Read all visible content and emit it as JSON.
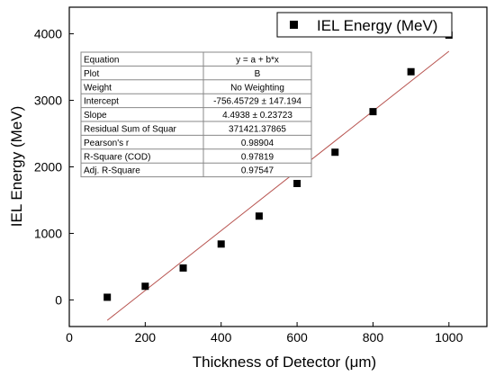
{
  "chart_data": {
    "type": "scatter",
    "xlabel": "Thickness of Detector (μm)",
    "ylabel": "IEL Energy (MeV)",
    "xlim": [
      0,
      1100
    ],
    "ylim": [
      -400,
      4400
    ],
    "xticks": [
      0,
      200,
      400,
      600,
      800,
      1000
    ],
    "yticks": [
      0,
      1000,
      2000,
      3000,
      4000
    ],
    "grid": false,
    "legend_position": "top-right",
    "series": [
      {
        "name": "IEL Energy (MeV)",
        "marker": "square",
        "color": "#000000",
        "x": [
          100,
          200,
          300,
          400,
          500,
          600,
          700,
          800,
          900,
          1000
        ],
        "y": [
          40,
          205,
          480,
          840,
          1260,
          1750,
          2220,
          2830,
          3430,
          3980
        ]
      }
    ],
    "fit_line": {
      "intercept": -756.45729,
      "slope": 4.4938,
      "x_range": [
        100,
        1000
      ],
      "color": "#b85450"
    },
    "fit_table": [
      [
        "Equation",
        "y = a + b*x"
      ],
      [
        "Plot",
        "B"
      ],
      [
        "Weight",
        "No Weighting"
      ],
      [
        "Intercept",
        "-756.45729 ± 147.194"
      ],
      [
        "Slope",
        "4.4938 ± 0.23723"
      ],
      [
        "Residual Sum of Squar",
        "371421.37865"
      ],
      [
        "Pearson's r",
        "0.98904"
      ],
      [
        "R-Square (COD)",
        "0.97819"
      ],
      [
        "Adj. R-Square",
        "0.97547"
      ]
    ]
  }
}
